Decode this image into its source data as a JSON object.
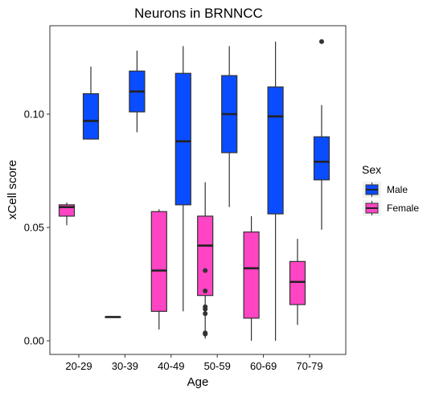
{
  "chart_data": {
    "type": "boxplot",
    "title": "Neurons in BRNNCC",
    "xlabel": "Age",
    "ylabel": "xCell score",
    "categories": [
      "20-29",
      "30-39",
      "40-49",
      "50-59",
      "60-69",
      "70-79"
    ],
    "yticks": [
      0.0,
      0.05,
      0.1
    ],
    "ytick_labels": [
      "0.00",
      "0.05",
      "0.10"
    ],
    "ylim": [
      -0.006,
      0.139
    ],
    "grid": false,
    "legend": {
      "title": "Sex",
      "position": "right",
      "entries": [
        {
          "name": "Male",
          "color": "#0a4cff"
        },
        {
          "name": "Female",
          "color": "#ff44c4"
        }
      ]
    },
    "series": [
      {
        "name": "Male",
        "color": "#0a4cff",
        "boxes": [
          {
            "category": "20-29",
            "whisker_low": 0.089,
            "q1": 0.089,
            "median": 0.097,
            "q3": 0.109,
            "whisker_high": 0.121,
            "outliers": []
          },
          {
            "category": "30-39",
            "whisker_low": 0.092,
            "q1": 0.101,
            "median": 0.11,
            "q3": 0.119,
            "whisker_high": 0.128,
            "outliers": []
          },
          {
            "category": "40-49",
            "whisker_low": 0.013,
            "q1": 0.06,
            "median": 0.088,
            "q3": 0.118,
            "whisker_high": 0.13,
            "outliers": []
          },
          {
            "category": "50-59",
            "whisker_low": 0.059,
            "q1": 0.083,
            "median": 0.1,
            "q3": 0.117,
            "whisker_high": 0.13,
            "outliers": []
          },
          {
            "category": "60-69",
            "whisker_low": 0.0,
            "q1": 0.056,
            "median": 0.099,
            "q3": 0.112,
            "whisker_high": 0.132,
            "outliers": []
          },
          {
            "category": "70-79",
            "whisker_low": 0.049,
            "q1": 0.071,
            "median": 0.079,
            "q3": 0.09,
            "whisker_high": 0.104,
            "outliers": [
              0.132
            ]
          }
        ]
      },
      {
        "name": "Female",
        "color": "#ff44c4",
        "boxes": [
          {
            "category": "20-29",
            "whisker_low": 0.051,
            "q1": 0.055,
            "median": 0.059,
            "q3": 0.06,
            "whisker_high": 0.061,
            "outliers": []
          },
          {
            "category": "30-39",
            "whisker_low": 0.0105,
            "q1": 0.0105,
            "median": 0.0105,
            "q3": 0.0105,
            "whisker_high": 0.0105,
            "outliers": []
          },
          {
            "category": "40-49",
            "whisker_low": 0.005,
            "q1": 0.013,
            "median": 0.031,
            "q3": 0.057,
            "whisker_high": 0.058,
            "outliers": []
          },
          {
            "category": "50-59",
            "whisker_low": 0.001,
            "q1": 0.02,
            "median": 0.042,
            "q3": 0.055,
            "whisker_high": 0.07,
            "outliers": [
              0.031,
              0.022,
              0.015,
              0.014,
              0.012,
              0.0035,
              0.003
            ]
          },
          {
            "category": "60-69",
            "whisker_low": 0.0,
            "q1": 0.01,
            "median": 0.032,
            "q3": 0.048,
            "whisker_high": 0.055,
            "outliers": []
          },
          {
            "category": "70-79",
            "whisker_low": 0.007,
            "q1": 0.016,
            "median": 0.026,
            "q3": 0.035,
            "whisker_high": 0.045,
            "outliers": []
          }
        ]
      }
    ]
  }
}
